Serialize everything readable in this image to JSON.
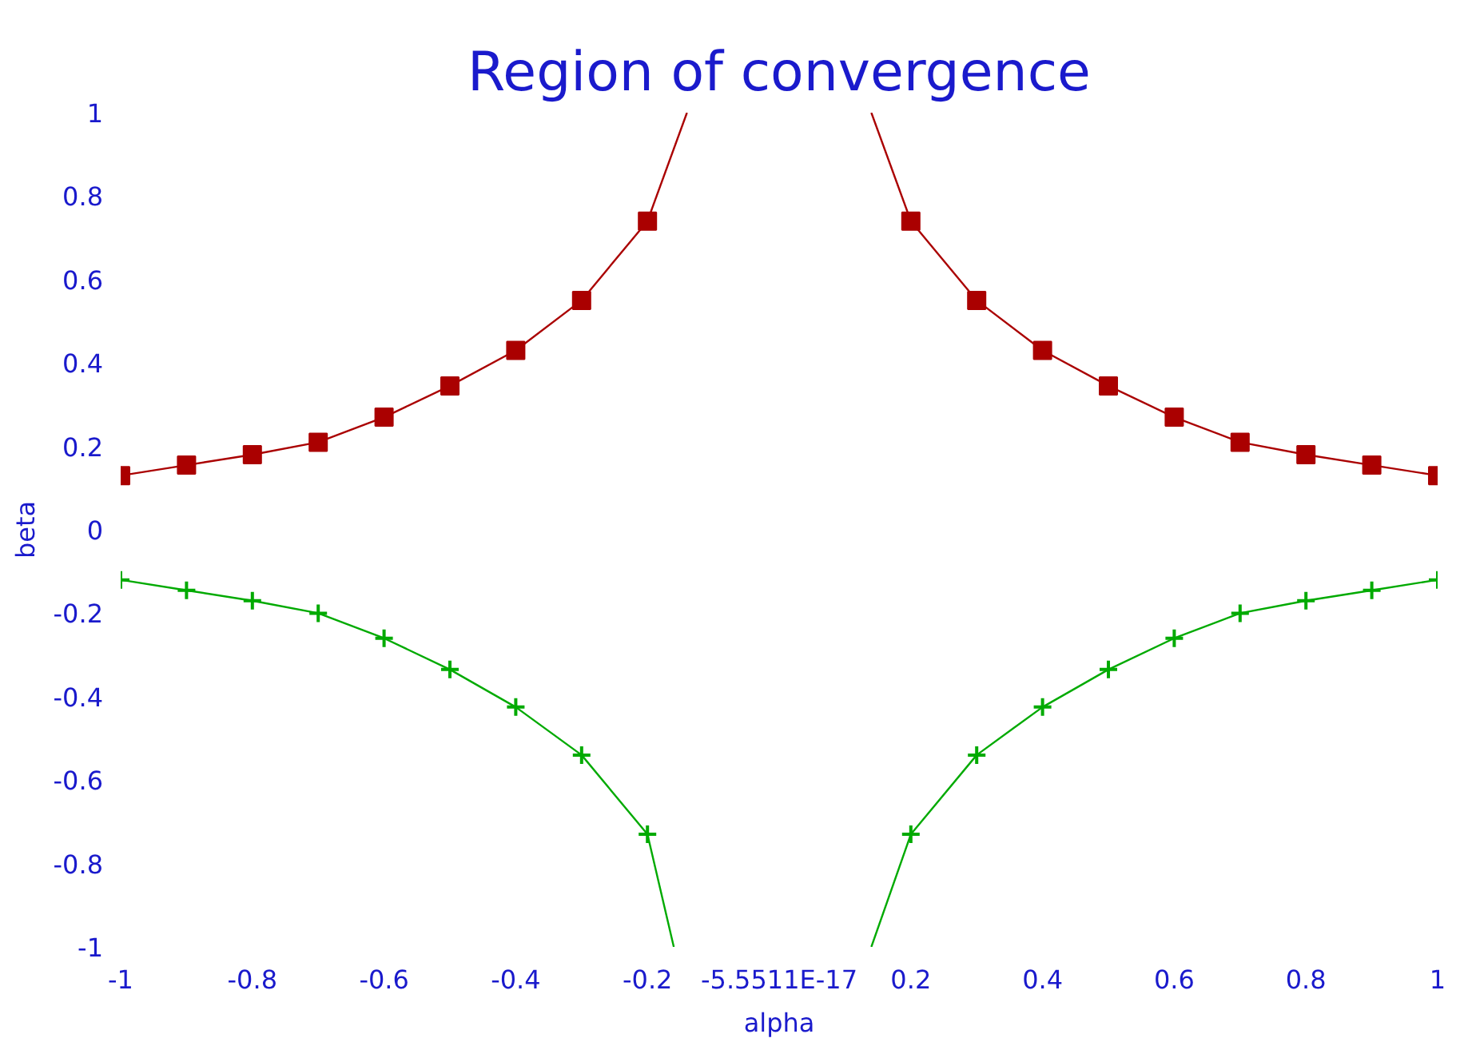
{
  "chart_data": {
    "type": "line",
    "title": "Region of convergence",
    "xlabel": "alpha",
    "ylabel": "beta",
    "xlim": [
      -1,
      1
    ],
    "ylim": [
      -1,
      1
    ],
    "xticks": [
      -1,
      -0.8,
      -0.6,
      -0.4,
      -0.2,
      {
        "value": 0,
        "label": "-5.5511E-17"
      },
      0.2,
      0.4,
      0.6,
      0.8,
      1
    ],
    "yticks": [
      -1,
      -0.8,
      -0.6,
      -0.4,
      -0.2,
      0,
      0.2,
      0.4,
      0.6,
      0.8,
      1
    ],
    "grid": false,
    "line_style": "solid",
    "series": [
      {
        "color": "#aa0000",
        "marker": "square",
        "x": [
          -1,
          -0.9,
          -0.8,
          -0.7,
          -0.6,
          -0.5,
          -0.4,
          -0.3,
          -0.2
        ],
        "values": [
          0.13,
          0.155,
          0.18,
          0.21,
          0.27,
          0.345,
          0.43,
          0.55,
          0.74
        ]
      },
      {
        "color": "#aa0000",
        "marker": "none",
        "x": [
          -0.2,
          -0.14
        ],
        "values": [
          0.74,
          1
        ]
      },
      {
        "color": "#aa0000",
        "marker": "square",
        "x": [
          0.2,
          0.3,
          0.4,
          0.5,
          0.6,
          0.7,
          0.8,
          0.9,
          1
        ],
        "values": [
          0.74,
          0.55,
          0.43,
          0.345,
          0.27,
          0.21,
          0.18,
          0.155,
          0.13
        ]
      },
      {
        "color": "#aa0000",
        "marker": "none",
        "x": [
          0.14,
          0.2
        ],
        "values": [
          1,
          0.74
        ]
      },
      {
        "color": "#00aa00",
        "marker": "cross",
        "x": [
          -1,
          -0.9,
          -0.8,
          -0.7,
          -0.6,
          -0.5,
          -0.4,
          -0.3,
          -0.2
        ],
        "values": [
          -0.12,
          -0.145,
          -0.17,
          -0.2,
          -0.26,
          -0.335,
          -0.425,
          -0.54,
          -0.73
        ]
      },
      {
        "color": "#00aa00",
        "marker": "none",
        "x": [
          -0.2,
          -0.16
        ],
        "values": [
          -0.73,
          -1
        ]
      },
      {
        "color": "#00aa00",
        "marker": "cross",
        "x": [
          0.2,
          0.3,
          0.4,
          0.5,
          0.6,
          0.7,
          0.8,
          0.9,
          1
        ],
        "values": [
          -0.73,
          -0.54,
          -0.425,
          -0.335,
          -0.26,
          -0.2,
          -0.17,
          -0.145,
          -0.12
        ]
      },
      {
        "color": "#00aa00",
        "marker": "none",
        "x": [
          0.14,
          0.2
        ],
        "values": [
          -1,
          -0.73
        ]
      }
    ]
  }
}
